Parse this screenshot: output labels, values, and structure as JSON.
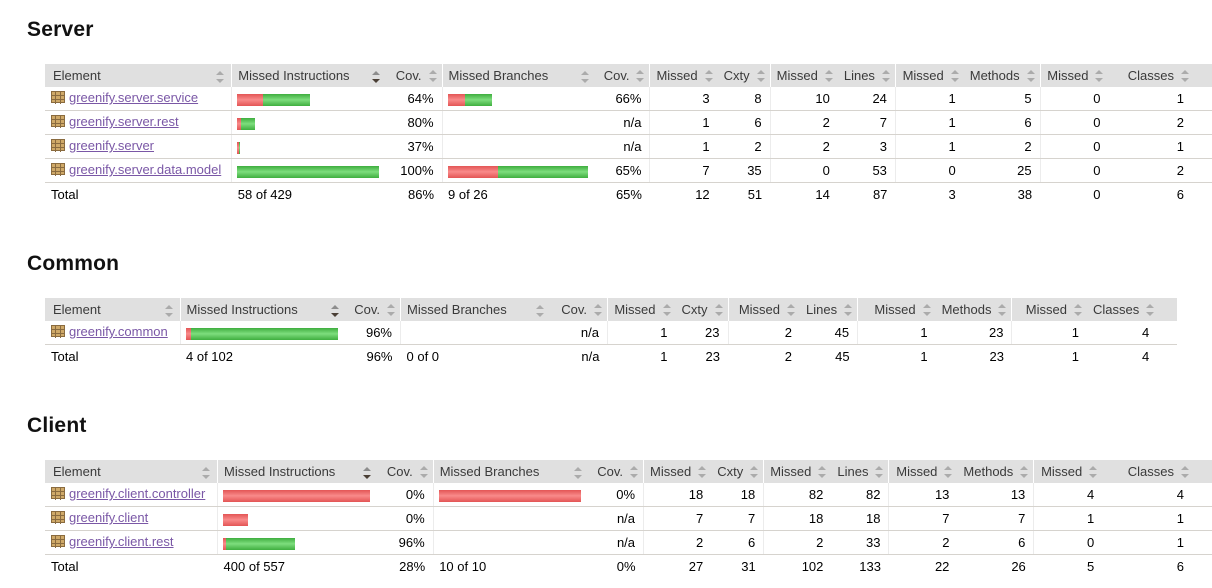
{
  "colors": {
    "link": "#7a57a6",
    "header_bg": "#e0e0e0",
    "row_border": "#d6d3ce",
    "bar_red": "#e35555",
    "bar_green": "#3fae3f"
  },
  "icons": {
    "package": "package-icon",
    "sort": "sort-icon",
    "sort_desc": "sort-desc-icon"
  },
  "columns": [
    {
      "label": "Element",
      "type": "el",
      "sort": "none"
    },
    {
      "label": "Missed Instructions",
      "type": "bar",
      "sort": "desc"
    },
    {
      "label": "Cov.",
      "type": "ctr2",
      "sort": "none"
    },
    {
      "label": "Missed Branches",
      "type": "bar",
      "sort": "none"
    },
    {
      "label": "Cov.",
      "type": "ctr2",
      "sort": "none"
    },
    {
      "label": "Missed",
      "type": "ctr1",
      "sort": "none"
    },
    {
      "label": "Cxty",
      "type": "ctr2",
      "sort": "none"
    },
    {
      "label": "Missed",
      "type": "ctr1",
      "sort": "none"
    },
    {
      "label": "Lines",
      "type": "ctr2",
      "sort": "none"
    },
    {
      "label": "Missed",
      "type": "ctr1",
      "sort": "none"
    },
    {
      "label": "Methods",
      "type": "ctr2",
      "sort": "none"
    },
    {
      "label": "Missed",
      "type": "ctr1",
      "sort": "none"
    },
    {
      "label": "Classes",
      "type": "ctr2",
      "sort": "none"
    }
  ],
  "sections": [
    {
      "title": "Server",
      "rows": [
        {
          "name": "greenify.server.service",
          "instr_bar": {
            "red": 26,
            "green": 47
          },
          "instr_cov": "64%",
          "branch_bar": {
            "red": 17,
            "green": 27
          },
          "branch_cov": "66%",
          "counters": [
            3,
            8,
            10,
            24,
            1,
            5,
            0,
            1
          ]
        },
        {
          "name": "greenify.server.rest",
          "instr_bar": {
            "red": 4,
            "green": 14
          },
          "instr_cov": "80%",
          "branch_bar": null,
          "branch_cov": "n/a",
          "counters": [
            1,
            6,
            2,
            7,
            1,
            6,
            0,
            2
          ]
        },
        {
          "name": "greenify.server",
          "instr_bar": {
            "red": 2,
            "green": 1
          },
          "instr_cov": "37%",
          "branch_bar": null,
          "branch_cov": "n/a",
          "counters": [
            1,
            2,
            2,
            3,
            1,
            2,
            0,
            1
          ]
        },
        {
          "name": "greenify.server.data.model",
          "instr_bar": {
            "red": 0,
            "green": 142
          },
          "instr_cov": "100%",
          "branch_bar": {
            "red": 50,
            "green": 90
          },
          "branch_cov": "65%",
          "counters": [
            7,
            35,
            0,
            53,
            0,
            25,
            0,
            2
          ]
        }
      ],
      "total": {
        "label": "Total",
        "instr": "58 of 429",
        "instr_cov": "86%",
        "branch": "9 of 26",
        "branch_cov": "65%",
        "counters": [
          12,
          51,
          14,
          87,
          3,
          38,
          0,
          6
        ]
      }
    },
    {
      "title": "Common",
      "rows": [
        {
          "name": "greenify.common",
          "instr_bar": {
            "red": 5,
            "green": 147
          },
          "instr_cov": "96%",
          "branch_bar": null,
          "branch_cov": "n/a",
          "counters": [
            1,
            23,
            2,
            45,
            1,
            23,
            1,
            4
          ]
        }
      ],
      "total": {
        "label": "Total",
        "instr": "4 of 102",
        "instr_cov": "96%",
        "branch": "0 of 0",
        "branch_cov": "n/a",
        "counters": [
          1,
          23,
          2,
          45,
          1,
          23,
          1,
          4
        ]
      }
    },
    {
      "title": "Client",
      "rows": [
        {
          "name": "greenify.client.controller",
          "instr_bar": {
            "red": 147,
            "green": 0
          },
          "instr_cov": "0%",
          "branch_bar": {
            "red": 142,
            "green": 0
          },
          "branch_cov": "0%",
          "counters": [
            18,
            18,
            82,
            82,
            13,
            13,
            4,
            4
          ]
        },
        {
          "name": "greenify.client",
          "instr_bar": {
            "red": 25,
            "green": 0
          },
          "instr_cov": "0%",
          "branch_bar": null,
          "branch_cov": "n/a",
          "counters": [
            7,
            7,
            18,
            18,
            7,
            7,
            1,
            1
          ]
        },
        {
          "name": "greenify.client.rest",
          "instr_bar": {
            "red": 3,
            "green": 69
          },
          "instr_cov": "96%",
          "branch_bar": null,
          "branch_cov": "n/a",
          "counters": [
            2,
            6,
            2,
            33,
            2,
            6,
            0,
            1
          ]
        }
      ],
      "total": {
        "label": "Total",
        "instr": "400 of 557",
        "instr_cov": "28%",
        "branch": "10 of 10",
        "branch_cov": "0%",
        "counters": [
          27,
          31,
          102,
          133,
          22,
          26,
          5,
          6
        ]
      }
    }
  ]
}
